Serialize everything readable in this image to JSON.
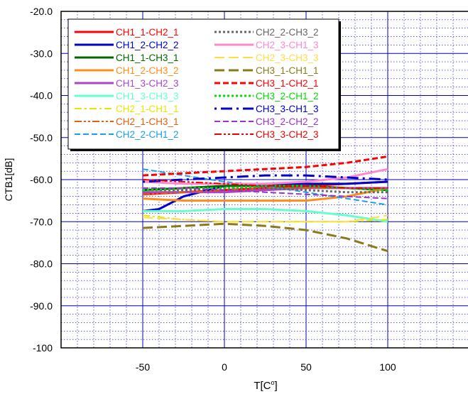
{
  "chart_data": {
    "type": "line",
    "xlabel": "T[C°]",
    "xlabel_base": "T[C",
    "xlabel_sup": "o",
    "xlabel_tail": "]",
    "ylabel": "CTB1[dB]",
    "xlim": [
      -100,
      150
    ],
    "ylim": [
      -100,
      -20
    ],
    "x_ticks": [
      -50,
      0,
      50,
      100
    ],
    "x_tick_labels": [
      "-50",
      "0",
      "50",
      "100"
    ],
    "y_ticks": [
      -20,
      -30,
      -40,
      -50,
      -60,
      -70,
      -80,
      -90,
      -100
    ],
    "y_tick_labels": [
      "-20.0",
      "-30.0",
      "-40.0",
      "-50.0",
      "-60.0",
      "-70.0",
      "-80.0",
      "-90.0",
      "-100"
    ],
    "grid": true,
    "legend_position": "top-left",
    "series": [
      {
        "name": "CH1_1-CH2_1",
        "color": "#ff0000",
        "dash": "solid",
        "width": 3,
        "x": [
          -50,
          -25,
          0,
          25,
          50,
          75,
          100
        ],
        "y": [
          -63.5,
          -63.0,
          -62.5,
          -62.0,
          -61.5,
          -61.0,
          -60.5
        ]
      },
      {
        "name": "CH1_2-CH2_2",
        "color": "#0000cc",
        "dash": "solid",
        "width": 3,
        "x": [
          -50,
          -40,
          -25,
          0,
          25,
          50,
          75,
          100
        ],
        "y": [
          -67.5,
          -67.0,
          -64.0,
          -61.5,
          -61.0,
          -61.0,
          -61.0,
          -60.5
        ]
      },
      {
        "name": "CH1_1-CH3_1",
        "color": "#006600",
        "dash": "solid",
        "width": 3,
        "x": [
          -50,
          -25,
          0,
          25,
          50,
          75,
          100
        ],
        "y": [
          -62.5,
          -62.0,
          -61.5,
          -61.5,
          -61.5,
          -62.0,
          -62.5
        ]
      },
      {
        "name": "CH1_2-CH3_2",
        "color": "#ff8c1a",
        "dash": "solid",
        "width": 3,
        "x": [
          -50,
          -25,
          0,
          25,
          50,
          75,
          100
        ],
        "y": [
          -64.5,
          -65.0,
          -65.0,
          -65.0,
          -65.0,
          -64.0,
          -62.0
        ]
      },
      {
        "name": "CH1_3-CH2_3",
        "color": "#aa44cc",
        "dash": "solid",
        "width": 3,
        "x": [
          -50,
          -25,
          0,
          25,
          50,
          75,
          100
        ],
        "y": [
          -63.0,
          -63.0,
          -63.0,
          -62.5,
          -62.0,
          -62.0,
          -62.0
        ]
      },
      {
        "name": "CH1_3-CH3_3",
        "color": "#66ffcc",
        "dash": "solid",
        "width": 3,
        "x": [
          -50,
          -25,
          0,
          25,
          50,
          75,
          100
        ],
        "y": [
          -67.5,
          -67.5,
          -67.0,
          -67.0,
          -67.5,
          -68.5,
          -70.0
        ]
      },
      {
        "name": "CH2_1-CH1_1",
        "color": "#e6e600",
        "dash": "dashdot",
        "width": 2,
        "x": [
          -50,
          -25,
          0,
          25,
          50,
          75,
          100
        ],
        "y": [
          -68.5,
          -69.5,
          -70.0,
          -70.0,
          -70.0,
          -70.0,
          -69.5
        ]
      },
      {
        "name": "CH2_1-CH3_1",
        "color": "#e06010",
        "dash": "dashdotdot",
        "width": 2,
        "x": [
          -50,
          -25,
          0,
          25,
          50,
          75,
          100
        ],
        "y": [
          -63.5,
          -63.0,
          -62.5,
          -62.0,
          -62.0,
          -62.0,
          -62.0
        ]
      },
      {
        "name": "CH2_2-CH1_2",
        "color": "#1aa0e6",
        "dash": "dash",
        "width": 2,
        "x": [
          -50,
          -25,
          0,
          25,
          50,
          75,
          100
        ],
        "y": [
          -57.5,
          -59.0,
          -60.5,
          -61.5,
          -63.0,
          -64.5,
          -66.0
        ]
      },
      {
        "name": "CH2_2-CH3_2",
        "color": "#666666",
        "dash": "dot",
        "width": 3,
        "x": [
          -50,
          -25,
          0,
          25,
          50,
          75,
          100
        ],
        "y": [
          -62.5,
          -62.5,
          -62.0,
          -62.0,
          -62.5,
          -63.0,
          -63.0
        ]
      },
      {
        "name": "CH2_3-CH1_3",
        "color": "#ff88cc",
        "dash": "solid",
        "width": 3,
        "x": [
          -50,
          -25,
          0,
          25,
          50,
          75,
          100
        ],
        "y": [
          -60.5,
          -61.0,
          -61.0,
          -61.0,
          -60.5,
          -59.5,
          -57.5
        ]
      },
      {
        "name": "CH2_3-CH3_3",
        "color": "#ffdd44",
        "dash": "longdash",
        "width": 2,
        "x": [
          -50,
          -25,
          0,
          25,
          50,
          75,
          100
        ],
        "y": [
          -69.0,
          -69.5,
          -70.0,
          -70.0,
          -70.0,
          -70.0,
          -68.5
        ]
      },
      {
        "name": "CH3_1-CH1_1",
        "color": "#8b7a1a",
        "dash": "longdash",
        "width": 3,
        "x": [
          -50,
          -25,
          0,
          25,
          50,
          75,
          100
        ],
        "y": [
          -71.5,
          -71.0,
          -70.5,
          -71.0,
          -72.0,
          -74.0,
          -77.0
        ]
      },
      {
        "name": "CH3_1-CH2_1",
        "color": "#ff0000",
        "dash": "dash",
        "width": 3,
        "x": [
          -50,
          -25,
          0,
          25,
          50,
          75,
          100
        ],
        "y": [
          -59.0,
          -58.5,
          -58.0,
          -57.5,
          -57.0,
          -56.0,
          -54.5
        ]
      },
      {
        "name": "CH3_2-CH1_2",
        "color": "#00dd00",
        "dash": "dot",
        "width": 3,
        "x": [
          -50,
          -25,
          0,
          25,
          50,
          75,
          100
        ],
        "y": [
          -62.5,
          -62.0,
          -62.0,
          -61.5,
          -61.5,
          -62.0,
          -62.5
        ]
      },
      {
        "name": "CH3_3-CH1_3",
        "color": "#0000cc",
        "dash": "dashdotbig",
        "width": 3,
        "x": [
          -50,
          -25,
          0,
          25,
          50,
          75,
          100
        ],
        "y": [
          -60.5,
          -60.0,
          -59.5,
          -59.0,
          -59.0,
          -59.5,
          -60.0
        ]
      },
      {
        "name": "CH3_2-CH2_2",
        "color": "#9933cc",
        "dash": "dash",
        "width": 2,
        "x": [
          -50,
          -25,
          0,
          25,
          50,
          75,
          100
        ],
        "y": [
          -62.0,
          -62.0,
          -62.5,
          -63.0,
          -63.5,
          -64.0,
          -64.5
        ]
      },
      {
        "name": "CH3_3-CH2_3",
        "color": "#ee0000",
        "dash": "dashdotdot",
        "width": 2,
        "x": [
          -50,
          -25,
          0,
          25,
          50,
          75,
          100
        ],
        "y": [
          -60.0,
          -60.5,
          -61.0,
          -61.5,
          -61.5,
          -62.0,
          -62.0
        ]
      }
    ]
  }
}
